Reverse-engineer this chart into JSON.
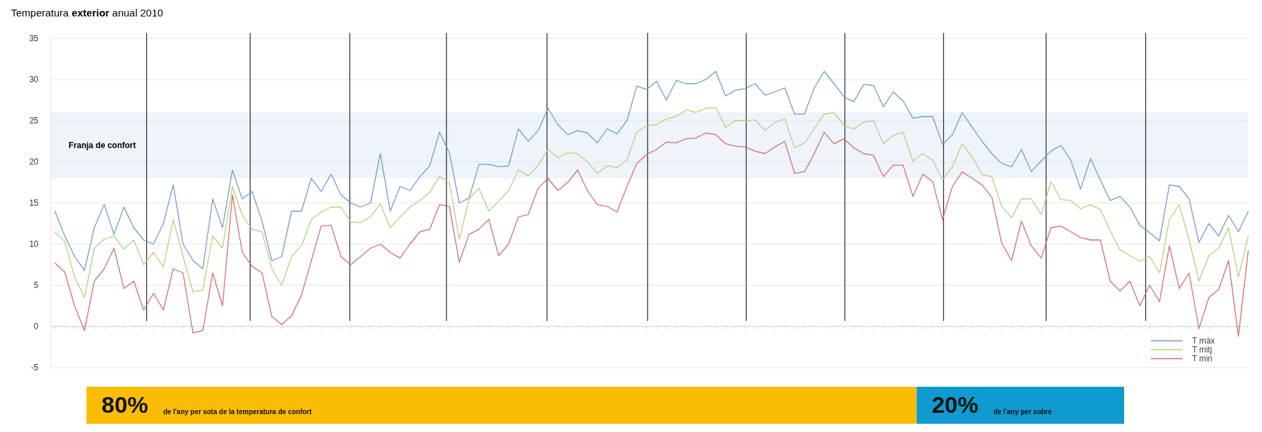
{
  "chart_data": [
    {
      "type": "line",
      "title": "Temperatura exterior anual 2010",
      "categories": [
        null,
        null,
        null,
        null,
        null,
        null,
        null,
        null,
        null,
        null,
        null,
        null,
        null,
        null,
        null,
        null,
        null,
        null,
        null,
        null,
        null,
        null,
        null,
        null,
        null,
        null,
        null,
        null,
        null,
        null,
        null,
        null,
        null,
        null,
        null,
        null,
        null,
        null,
        null,
        null,
        null,
        null,
        null,
        null,
        null,
        null,
        null,
        null,
        null,
        null,
        null,
        null,
        null,
        null,
        null,
        null,
        null,
        null,
        null,
        null,
        null,
        null,
        null,
        null,
        null,
        null,
        null,
        null,
        null,
        null,
        null,
        null,
        null,
        null,
        null,
        null,
        null,
        null,
        null,
        null,
        null,
        null,
        null,
        null,
        null,
        null,
        null,
        null,
        null,
        null,
        null,
        null,
        null,
        null,
        null,
        null,
        null,
        null,
        null,
        null,
        null,
        null,
        null,
        null,
        null,
        null,
        null,
        null,
        null,
        null,
        null,
        null,
        null,
        null,
        null,
        null,
        null,
        null,
        null,
        null,
        null,
        null
      ],
      "series": [
        {
          "name": "T màx",
          "color": "#6b9bc8",
          "values": [
            14,
            11,
            8.5,
            6.8,
            12,
            14.8,
            11.2,
            14.5,
            12,
            10.5,
            10,
            12.5,
            17.2,
            10,
            8,
            7,
            15.5,
            12,
            19,
            15.5,
            16.4,
            12.8,
            8,
            8.5,
            14,
            14,
            18,
            16.4,
            18.5,
            16,
            15,
            14.5,
            15,
            21,
            14,
            17,
            16.5,
            18.2,
            19.5,
            23.6,
            21.1,
            15,
            15.6,
            19.7,
            19.7,
            19.4,
            19.5,
            24,
            22.5,
            23.8,
            26.5,
            24.5,
            23.3,
            23.8,
            23.5,
            22.3,
            24,
            23.4,
            25,
            29.2,
            28.8,
            29.8,
            27.5,
            29.9,
            29.5,
            29.5,
            30,
            31,
            28,
            28.7,
            28.9,
            29.5,
            28.1,
            28.5,
            29,
            25.8,
            25.8,
            29,
            31,
            29.5,
            27.9,
            27.3,
            29.4,
            29.3,
            26.7,
            28.5,
            27.4,
            25.3,
            25.5,
            25.5,
            22.1,
            23.3,
            26,
            24.2,
            22.5,
            21,
            19.8,
            19.4,
            21.5,
            18.8,
            20.1,
            21.3,
            22,
            20.2,
            16.7,
            20.4,
            17.8,
            15.3,
            15.8,
            14.5,
            12.3,
            11.4,
            10.4,
            17.2,
            17,
            15.5,
            10.2,
            12.5,
            11,
            13.5,
            11.5,
            14
          ]
        },
        {
          "name": "T mitj",
          "color": "#b5cf78",
          "values": [
            11.5,
            10.3,
            6,
            3.5,
            9.5,
            10.6,
            11,
            9.4,
            10.5,
            7.5,
            9,
            7.2,
            13,
            8.5,
            4.2,
            4.4,
            11,
            9.5,
            17,
            13.5,
            11.8,
            11.5,
            7,
            5,
            8.5,
            9.8,
            13,
            13.9,
            14.5,
            14.5,
            12.7,
            12.6,
            13.3,
            14.9,
            12,
            13.3,
            14.5,
            15.3,
            16.3,
            18.2,
            17.5,
            10.6,
            15.5,
            16.8,
            14,
            15.2,
            16.5,
            19,
            18.3,
            19.6,
            21.5,
            20.5,
            21.1,
            21,
            20,
            18.6,
            19.5,
            19.3,
            20.2,
            23.6,
            24.4,
            24.5,
            25.2,
            25.5,
            26.3,
            26,
            26.5,
            26.6,
            24.2,
            25,
            25,
            25.1,
            23.8,
            24.8,
            25.2,
            21.7,
            22.3,
            24,
            25.8,
            26,
            24.4,
            24,
            24.8,
            25,
            22.2,
            23.2,
            23.6,
            20.1,
            21,
            20.2,
            17.8,
            19.4,
            22.2,
            20.6,
            18.5,
            18.2,
            14.6,
            13.2,
            15.5,
            15.5,
            13.6,
            17.6,
            15.4,
            15.3,
            14.3,
            14.8,
            14.2,
            11.6,
            9.3,
            8.6,
            7.9,
            8.5,
            6.5,
            13,
            14.8,
            10.5,
            5.5,
            8.6,
            9.5,
            12,
            6,
            11
          ]
        },
        {
          "name": "T min",
          "color": "#d46a6a",
          "values": [
            7.7,
            6.6,
            2.5,
            -0.5,
            5.5,
            7,
            9.5,
            4.6,
            5.5,
            2,
            4,
            2,
            7,
            6.5,
            -0.8,
            -0.5,
            6.5,
            2.5,
            16,
            9,
            7.3,
            6.5,
            1.2,
            0.2,
            1.3,
            3.8,
            8,
            12.2,
            12.3,
            8.5,
            7.5,
            8.5,
            9.5,
            10,
            9,
            8.3,
            10,
            11.5,
            11.8,
            14.8,
            14.6,
            7.8,
            11.2,
            11.8,
            13,
            8.6,
            10,
            13.3,
            13.6,
            16.8,
            18,
            16.5,
            17.5,
            19,
            16.5,
            14.8,
            14.6,
            13.9,
            17,
            19.8,
            20.9,
            21.5,
            22.4,
            22.3,
            22.8,
            22.9,
            23.5,
            23.3,
            22.2,
            21.9,
            21.8,
            21.3,
            21,
            21.8,
            22.5,
            18.6,
            18.8,
            21,
            23.6,
            22.2,
            22.8,
            21.7,
            21,
            20.8,
            18.2,
            19.6,
            19.6,
            15.8,
            18.5,
            17.6,
            13,
            17,
            18.8,
            18,
            17.2,
            15.7,
            10.1,
            8,
            12.8,
            9.8,
            8.3,
            12,
            12.2,
            11.5,
            10.8,
            10.5,
            10.5,
            5.5,
            4.3,
            5.5,
            2.5,
            5,
            3,
            9.8,
            4.6,
            6.5,
            -0.3,
            3.5,
            4.5,
            8,
            -1.2,
            9.2
          ]
        }
      ],
      "ylim": [
        -5,
        35
      ],
      "yticks": [
        -5,
        0,
        5,
        10,
        15,
        20,
        25,
        30,
        35
      ],
      "grid": "y",
      "legend": "bottom right",
      "tick_labels": "y",
      "line_style": "solid",
      "marker": "none",
      "bands": [
        {
          "axis": "y",
          "from": 18,
          "to": 26,
          "label": "Franja de confort",
          "color": "#eef4fa"
        }
      ]
    },
    {
      "type": "bar",
      "orientation": "horizontal",
      "stacked": true,
      "categories": [
        null
      ],
      "xlim": [
        0,
        100
      ],
      "tick_labels": false,
      "series": [
        {
          "name": "de l'any per sota de la temperatura de confort",
          "color": "#fbbc05",
          "values": [
            80
          ],
          "value_labels": [
            "80%"
          ]
        },
        {
          "name": "de l'any per sobre",
          "color": "#0f9bd0",
          "values": [
            20
          ],
          "value_labels": [
            "20%"
          ]
        }
      ]
    }
  ]
}
